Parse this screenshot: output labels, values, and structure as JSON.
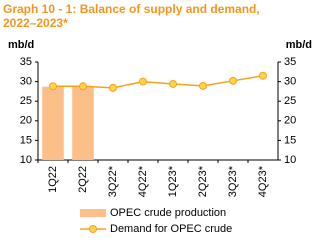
{
  "chart_data": {
    "type": "bar-line",
    "title": "Graph 10 - 1: Balance of supply and demand, 2022–2023*",
    "y_label": "mb/d",
    "y2_label": "mb/d",
    "categories": [
      "1Q22",
      "2Q22",
      "3Q22*",
      "4Q22*",
      "1Q23*",
      "2Q23*",
      "3Q23*",
      "4Q23*"
    ],
    "series": [
      {
        "name": "OPEC crude production",
        "type": "bar",
        "color": "#fdbf8a",
        "values": [
          28.7,
          28.9,
          null,
          null,
          null,
          null,
          null,
          null
        ]
      },
      {
        "name": "Demand for OPEC crude",
        "type": "line",
        "color": "#f7a21b",
        "marker_fill": "#ffd24d",
        "values": [
          28.8,
          28.8,
          28.4,
          30.0,
          29.4,
          28.9,
          30.2,
          31.5
        ]
      }
    ],
    "ylim": [
      10,
      35
    ],
    "yticks": [
      10,
      15,
      20,
      25,
      30,
      35
    ],
    "y2lim": [
      10,
      35
    ],
    "y2ticks": [
      10,
      15,
      20,
      25,
      30,
      35
    ]
  }
}
